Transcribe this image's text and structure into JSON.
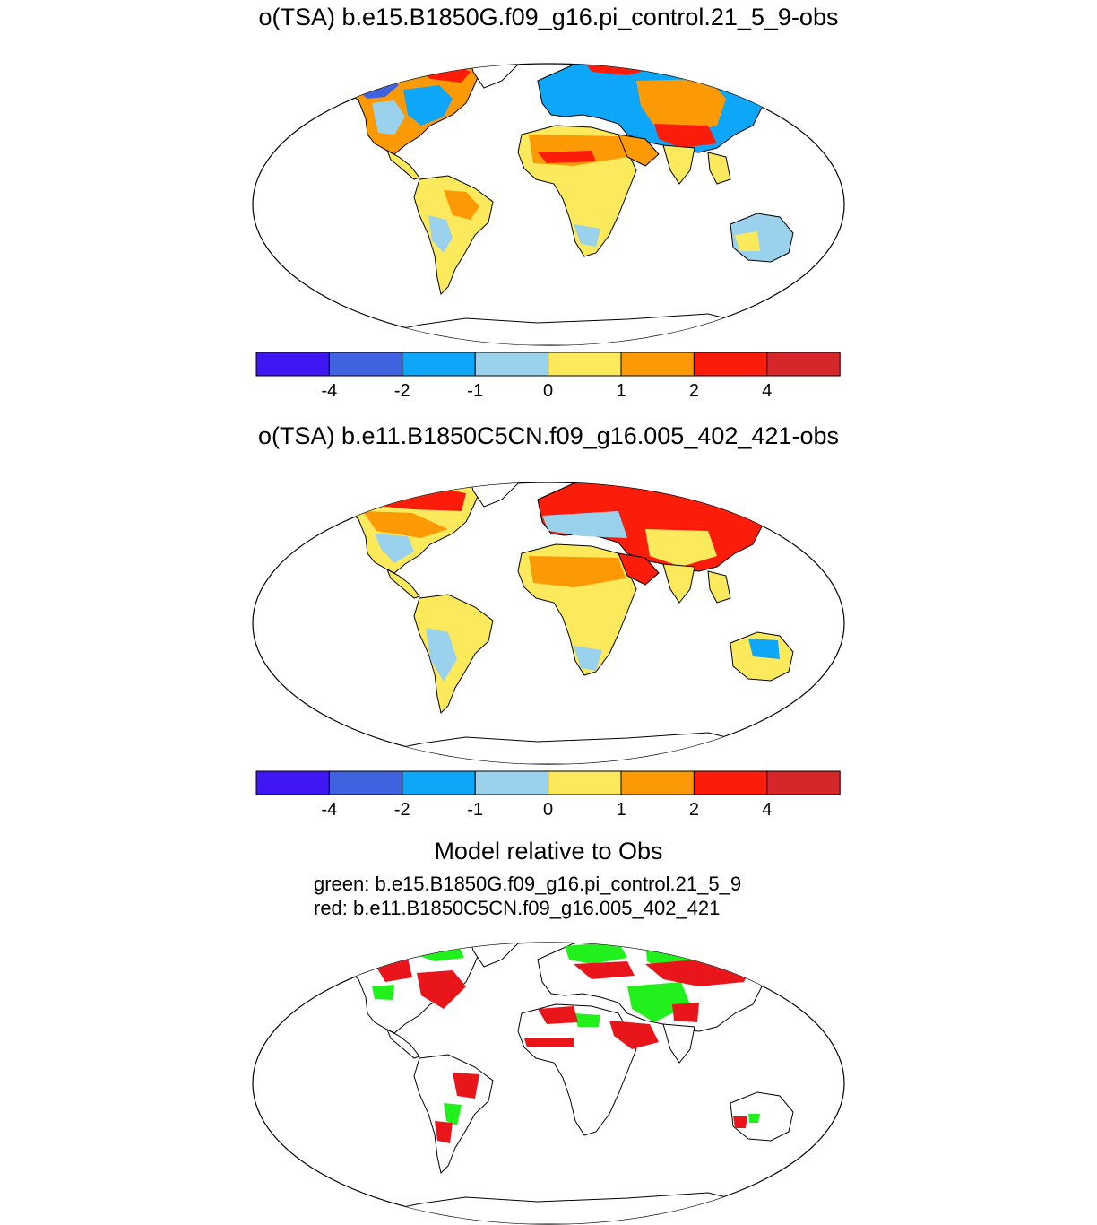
{
  "panels": [
    {
      "title": "o(TSA) b.e15.B1850G.f09_g16.pi_control.21_5_9-obs"
    },
    {
      "title": "o(TSA) b.e11.B1850C5CN.f09_g16.005_402_421-obs"
    }
  ],
  "colorbar": {
    "colors": [
      "#4016f5",
      "#3f63e0",
      "#0ea6f9",
      "#9ad2ee",
      "#fde95c",
      "#fc9a05",
      "#fc1c0a",
      "#d7262a"
    ],
    "labels": [
      "-4",
      "-2",
      "-1",
      "0",
      "1",
      "2",
      "4"
    ]
  },
  "comparison": {
    "title": "Model relative to Obs",
    "line1": "green: b.e15.B1850G.f09_g16.pi_control.21_5_9",
    "line2": "red: b.e11.B1850C5CN.f09_g16.005_402_421",
    "colors": {
      "green": "#22f01c",
      "red": "#e8161b"
    }
  }
}
